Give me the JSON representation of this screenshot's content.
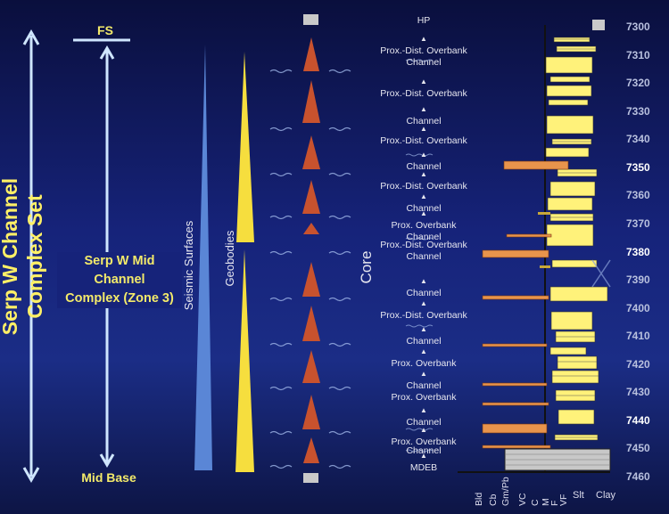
{
  "labels": {
    "complex_set": [
      "Serp W Channel",
      "Complex Set"
    ],
    "fs": "FS",
    "mid_channel_complex": [
      "Serp W Mid",
      "Channel",
      "Complex (Zone 3)"
    ],
    "mid_base": "Mid Base",
    "seismic_surfaces": "Seismic Surfaces",
    "geobodies": "Geobodies",
    "core": "Core"
  },
  "facies": [
    {
      "text": "HP",
      "depth": 7298
    },
    {
      "text": "Prox.-Dist. Overbank",
      "depth": 7309
    },
    {
      "text": "Channel",
      "depth": 7313
    },
    {
      "text": "Prox.-Dist. Overbank",
      "depth": 7324
    },
    {
      "text": "Channel",
      "depth": 7334
    },
    {
      "text": "Prox.-Dist. Overbank",
      "depth": 7341
    },
    {
      "text": "Channel",
      "depth": 7350
    },
    {
      "text": "Prox.-Dist. Overbank",
      "depth": 7357
    },
    {
      "text": "Channel",
      "depth": 7365
    },
    {
      "text": "Prox. Overbank",
      "depth": 7371
    },
    {
      "text": "Channel",
      "depth": 7375
    },
    {
      "text": "Prox.-Dist. Overbank",
      "depth": 7378
    },
    {
      "text": "Channel",
      "depth": 7382
    },
    {
      "text": "Channel",
      "depth": 7395
    },
    {
      "text": "Prox.-Dist. Overbank",
      "depth": 7403
    },
    {
      "text": "Channel",
      "depth": 7412
    },
    {
      "text": "Prox. Overbank",
      "depth": 7420
    },
    {
      "text": "Channel",
      "depth": 7428
    },
    {
      "text": "Prox. Overbank",
      "depth": 7432
    },
    {
      "text": "Channel",
      "depth": 7441
    },
    {
      "text": "Prox. Overbank",
      "depth": 7448
    },
    {
      "text": "Channel",
      "depth": 7451
    },
    {
      "text": "MDEB",
      "depth": 7457
    }
  ],
  "depth_axis": {
    "ticks": [
      7300,
      7310,
      7320,
      7330,
      7340,
      7350,
      7360,
      7370,
      7380,
      7390,
      7400,
      7410,
      7420,
      7430,
      7440,
      7450,
      7460
    ],
    "highlight": [
      7350,
      7380,
      7440
    ]
  },
  "grain_size_labels": [
    "Bld",
    "Cb",
    "Gm/Pb",
    "VC",
    "C",
    "M",
    "F",
    "VF",
    "Slt",
    "Clay"
  ],
  "colors": {
    "yellow": "#fff27a",
    "orange": "#e8944c",
    "triangle": "#c8522e",
    "seismic": "#5a86d6",
    "arrows": "#cfe6ff"
  }
}
